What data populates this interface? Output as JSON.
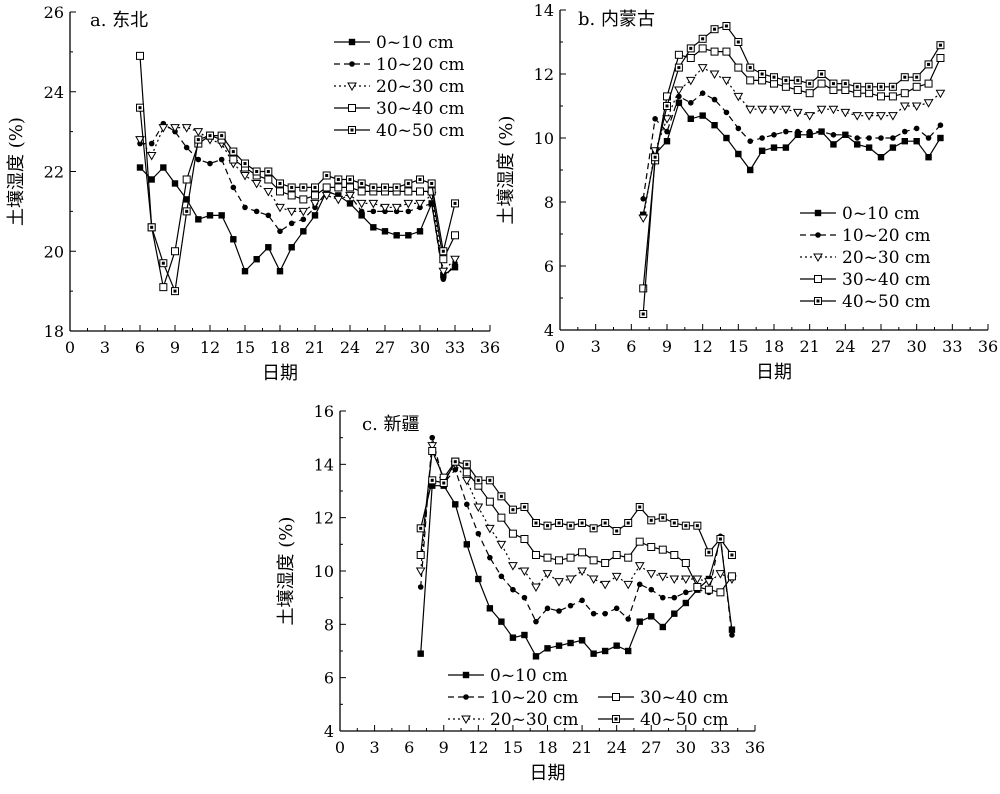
{
  "chart_data": [
    {
      "type": "line",
      "title": "a. 东北",
      "xlabel": "日期",
      "ylabel": "土壤湿度 (%)",
      "xlim": [
        0,
        36
      ],
      "ylim": [
        18,
        26
      ],
      "xticks": [
        "0",
        "3",
        "6",
        "9",
        "12",
        "15",
        "18",
        "21",
        "24",
        "27",
        "30",
        "33",
        "36"
      ],
      "yticks": [
        "18",
        "20",
        "22",
        "24",
        "26"
      ],
      "legend_position": "top-right",
      "series": [
        {
          "name": "0~10 cm",
          "marker": "square-filled",
          "dash": "solid",
          "x": [
            6,
            7,
            8,
            9,
            10,
            11,
            12,
            13,
            14,
            15,
            16,
            17,
            18,
            19,
            20,
            21,
            22,
            23,
            24,
            25,
            26,
            27,
            28,
            29,
            30,
            31,
            32,
            33
          ],
          "y": [
            22.1,
            21.8,
            22.1,
            21.7,
            21.3,
            20.8,
            20.9,
            20.9,
            20.3,
            19.5,
            19.8,
            20.1,
            19.5,
            20.1,
            20.5,
            20.9,
            21.5,
            21.4,
            21.2,
            20.9,
            20.6,
            20.5,
            20.4,
            20.4,
            20.5,
            21.2,
            19.4,
            19.6
          ]
        },
        {
          "name": "10~20 cm",
          "marker": "circle-filled",
          "dash": "dashed",
          "x": [
            6,
            7,
            8,
            9,
            10,
            11,
            12,
            13,
            14,
            15,
            16,
            17,
            18,
            19,
            20,
            21,
            22,
            23,
            24,
            25,
            26,
            27,
            28,
            29,
            30,
            31,
            32,
            33
          ],
          "y": [
            22.7,
            22.7,
            23.2,
            23.0,
            22.6,
            22.3,
            22.2,
            22.3,
            21.6,
            21.1,
            21.0,
            20.9,
            20.5,
            20.7,
            20.8,
            21.1,
            21.5,
            21.4,
            21.4,
            21.0,
            21.0,
            21.0,
            21.0,
            21.0,
            21.1,
            21.2,
            19.3,
            19.7
          ]
        },
        {
          "name": "20~30 cm",
          "marker": "triangle-open",
          "dash": "dotted",
          "x": [
            6,
            7,
            8,
            9,
            10,
            11,
            12,
            13,
            14,
            15,
            16,
            17,
            18,
            19,
            20,
            21,
            22,
            23,
            24,
            25,
            26,
            27,
            28,
            29,
            30,
            31,
            32,
            33
          ],
          "y": [
            22.8,
            22.4,
            23.1,
            23.1,
            23.1,
            23.0,
            22.8,
            22.7,
            22.2,
            21.9,
            21.7,
            21.5,
            21.1,
            21.0,
            21.0,
            21.2,
            21.4,
            21.3,
            21.4,
            21.2,
            21.2,
            21.1,
            21.1,
            21.2,
            21.2,
            21.4,
            19.5,
            19.8
          ]
        },
        {
          "name": "30~40 cm",
          "marker": "square-open",
          "dash": "solid",
          "x": [
            6,
            7,
            8,
            9,
            10,
            11,
            12,
            13,
            14,
            15,
            16,
            17,
            18,
            19,
            20,
            21,
            22,
            23,
            24,
            25,
            26,
            27,
            28,
            29,
            30,
            31,
            32,
            33
          ],
          "y": [
            24.9,
            20.6,
            19.1,
            20.0,
            21.8,
            22.7,
            22.9,
            22.8,
            22.3,
            22.1,
            21.9,
            21.8,
            21.5,
            21.4,
            21.3,
            21.4,
            21.6,
            21.6,
            21.6,
            21.5,
            21.5,
            21.5,
            21.5,
            21.5,
            21.5,
            21.5,
            19.8,
            20.4
          ]
        },
        {
          "name": "40~50 cm",
          "marker": "square-dotted",
          "dash": "solid",
          "x": [
            6,
            7,
            8,
            9,
            10,
            11,
            12,
            13,
            14,
            15,
            16,
            17,
            18,
            19,
            20,
            21,
            22,
            23,
            24,
            25,
            26,
            27,
            28,
            29,
            30,
            31,
            32,
            33
          ],
          "y": [
            23.6,
            20.6,
            19.7,
            19.0,
            21.0,
            22.8,
            22.9,
            22.9,
            22.5,
            22.2,
            22.0,
            22.0,
            21.7,
            21.6,
            21.6,
            21.6,
            21.9,
            21.8,
            21.8,
            21.7,
            21.6,
            21.6,
            21.6,
            21.7,
            21.8,
            21.7,
            20.0,
            21.2
          ]
        }
      ]
    },
    {
      "type": "line",
      "title": "b. 内蒙古",
      "xlabel": "日期",
      "ylabel": "土壤湿度 (%)",
      "xlim": [
        0,
        36
      ],
      "ylim": [
        4,
        14
      ],
      "xticks": [
        "0",
        "3",
        "6",
        "9",
        "12",
        "15",
        "18",
        "21",
        "24",
        "27",
        "30",
        "33",
        "36"
      ],
      "yticks": [
        "4",
        "6",
        "8",
        "10",
        "12",
        "14"
      ],
      "legend_position": "center-right",
      "series": [
        {
          "name": "0~10 cm",
          "marker": "square-filled",
          "dash": "solid",
          "x": [
            7,
            8,
            9,
            10,
            11,
            12,
            13,
            14,
            15,
            16,
            17,
            18,
            19,
            20,
            21,
            22,
            23,
            24,
            25,
            26,
            27,
            28,
            29,
            30,
            31,
            32
          ],
          "y": [
            7.6,
            9.5,
            9.9,
            11.1,
            10.6,
            10.7,
            10.4,
            10.0,
            9.5,
            9.0,
            9.6,
            9.7,
            9.7,
            10.1,
            10.1,
            10.2,
            9.8,
            10.1,
            9.8,
            9.7,
            9.4,
            9.7,
            9.9,
            9.9,
            9.4,
            10.0
          ]
        },
        {
          "name": "10~20 cm",
          "marker": "circle-filled",
          "dash": "dashed",
          "x": [
            7,
            8,
            9,
            10,
            11,
            12,
            13,
            14,
            15,
            16,
            17,
            18,
            19,
            20,
            21,
            22,
            23,
            24,
            25,
            26,
            27,
            28,
            29,
            30,
            31,
            32
          ],
          "y": [
            8.1,
            10.6,
            10.2,
            11.3,
            11.1,
            11.4,
            11.2,
            10.8,
            10.3,
            9.9,
            10.0,
            10.1,
            10.2,
            10.2,
            10.2,
            10.2,
            10.1,
            10.1,
            10.0,
            10.0,
            10.0,
            10.0,
            10.2,
            10.3,
            10.0,
            10.4
          ]
        },
        {
          "name": "20~30 cm",
          "marker": "triangle-open",
          "dash": "dotted",
          "x": [
            7,
            8,
            9,
            10,
            11,
            12,
            13,
            14,
            15,
            16,
            17,
            18,
            19,
            20,
            21,
            22,
            23,
            24,
            25,
            26,
            27,
            28,
            29,
            30,
            31,
            32
          ],
          "y": [
            7.5,
            9.6,
            10.6,
            11.5,
            11.8,
            12.2,
            12.0,
            11.8,
            11.3,
            10.9,
            10.9,
            10.9,
            10.9,
            10.8,
            10.7,
            10.9,
            10.9,
            10.8,
            10.7,
            10.7,
            10.7,
            10.7,
            11.0,
            11.0,
            11.1,
            11.4
          ]
        },
        {
          "name": "30~40 cm",
          "marker": "square-open",
          "dash": "solid",
          "x": [
            7,
            8,
            9,
            10,
            11,
            12,
            13,
            14,
            15,
            16,
            17,
            18,
            19,
            20,
            21,
            22,
            23,
            24,
            25,
            26,
            27,
            28,
            29,
            30,
            31,
            32
          ],
          "y": [
            5.3,
            9.3,
            11.3,
            12.6,
            12.5,
            12.8,
            12.7,
            12.7,
            12.2,
            11.8,
            11.8,
            11.7,
            11.6,
            11.5,
            11.4,
            11.7,
            11.5,
            11.5,
            11.4,
            11.4,
            11.3,
            11.3,
            11.4,
            11.6,
            11.7,
            12.5
          ]
        },
        {
          "name": "40~50 cm",
          "marker": "square-dotted",
          "dash": "solid",
          "x": [
            7,
            8,
            9,
            10,
            11,
            12,
            13,
            14,
            15,
            16,
            17,
            18,
            19,
            20,
            21,
            22,
            23,
            24,
            25,
            26,
            27,
            28,
            29,
            30,
            31,
            32
          ],
          "y": [
            4.5,
            9.4,
            11.0,
            12.2,
            12.8,
            13.1,
            13.4,
            13.5,
            13.0,
            12.2,
            12.0,
            11.9,
            11.8,
            11.8,
            11.7,
            12.0,
            11.7,
            11.7,
            11.6,
            11.6,
            11.6,
            11.6,
            11.9,
            11.9,
            12.3,
            12.9
          ]
        }
      ]
    },
    {
      "type": "line",
      "title": "c. 新疆",
      "xlabel": "日期",
      "ylabel": "土壤湿度 (%)",
      "xlim": [
        0,
        36
      ],
      "ylim": [
        4,
        16
      ],
      "xticks": [
        "0",
        "3",
        "6",
        "9",
        "12",
        "15",
        "18",
        "21",
        "24",
        "27",
        "30",
        "33",
        "36"
      ],
      "yticks": [
        "4",
        "6",
        "8",
        "10",
        "12",
        "14",
        "16"
      ],
      "legend_position": "bottom-left",
      "series": [
        {
          "name": "0~10 cm",
          "marker": "square-filled",
          "dash": "solid",
          "x": [
            7,
            8,
            9,
            10,
            11,
            12,
            13,
            14,
            15,
            16,
            17,
            18,
            19,
            20,
            21,
            22,
            23,
            24,
            25,
            26,
            27,
            28,
            29,
            30,
            31,
            32,
            33,
            34
          ],
          "y": [
            6.9,
            13.2,
            13.2,
            12.5,
            11.0,
            9.7,
            8.6,
            8.1,
            7.5,
            7.6,
            6.8,
            7.1,
            7.2,
            7.3,
            7.4,
            6.9,
            7.0,
            7.2,
            7.0,
            8.1,
            8.3,
            7.9,
            8.4,
            8.8,
            9.3,
            9.7,
            11.2,
            7.8
          ]
        },
        {
          "name": "10~20 cm",
          "marker": "circle-filled",
          "dash": "dashed",
          "x": [
            7,
            8,
            9,
            10,
            11,
            12,
            13,
            14,
            15,
            16,
            17,
            18,
            19,
            20,
            21,
            22,
            23,
            24,
            25,
            26,
            27,
            28,
            29,
            30,
            31,
            32,
            33,
            34
          ],
          "y": [
            9.4,
            15.0,
            13.3,
            13.8,
            12.5,
            11.4,
            10.5,
            9.8,
            9.3,
            9.0,
            8.1,
            8.6,
            8.5,
            8.7,
            8.9,
            8.4,
            8.4,
            8.6,
            8.2,
            9.5,
            9.3,
            9.0,
            9.0,
            9.2,
            9.3,
            9.2,
            11.3,
            7.6
          ]
        },
        {
          "name": "20~30 cm",
          "marker": "triangle-open",
          "dash": "dotted",
          "x": [
            7,
            8,
            9,
            10,
            11,
            12,
            13,
            14,
            15,
            16,
            17,
            18,
            19,
            20,
            21,
            22,
            23,
            24,
            25,
            26,
            27,
            28,
            29,
            30,
            31,
            32,
            33,
            34
          ],
          "y": [
            10.0,
            14.7,
            13.4,
            14.0,
            13.4,
            12.4,
            11.6,
            11.0,
            10.2,
            10.0,
            9.4,
            9.9,
            9.6,
            9.7,
            10.0,
            9.7,
            9.5,
            9.8,
            9.5,
            10.2,
            9.9,
            9.8,
            9.7,
            9.7,
            9.7,
            9.6,
            9.9,
            9.7
          ]
        },
        {
          "name": "30~40 cm",
          "marker": "square-open",
          "dash": "solid",
          "x": [
            7,
            8,
            9,
            10,
            11,
            12,
            13,
            14,
            15,
            16,
            17,
            18,
            19,
            20,
            21,
            22,
            23,
            24,
            25,
            26,
            27,
            28,
            29,
            30,
            31,
            32,
            33,
            34
          ],
          "y": [
            10.6,
            14.5,
            13.5,
            14.1,
            13.7,
            13.2,
            12.6,
            12.0,
            11.4,
            11.2,
            10.6,
            10.5,
            10.4,
            10.5,
            10.7,
            10.4,
            10.3,
            10.6,
            10.5,
            11.1,
            10.9,
            10.8,
            10.6,
            10.3,
            9.4,
            9.3,
            9.2,
            9.8
          ]
        },
        {
          "name": "40~50 cm",
          "marker": "square-dotted",
          "dash": "solid",
          "x": [
            7,
            8,
            9,
            10,
            11,
            12,
            13,
            14,
            15,
            16,
            17,
            18,
            19,
            20,
            21,
            22,
            23,
            24,
            25,
            26,
            27,
            28,
            29,
            30,
            31,
            32,
            33,
            34
          ],
          "y": [
            11.6,
            13.4,
            13.3,
            14.1,
            14.0,
            13.4,
            13.4,
            12.8,
            12.3,
            12.4,
            11.8,
            11.7,
            11.8,
            11.7,
            11.8,
            11.6,
            11.8,
            11.5,
            11.8,
            12.4,
            11.9,
            12.0,
            11.8,
            11.7,
            11.7,
            10.7,
            11.2,
            10.6
          ]
        }
      ]
    }
  ]
}
